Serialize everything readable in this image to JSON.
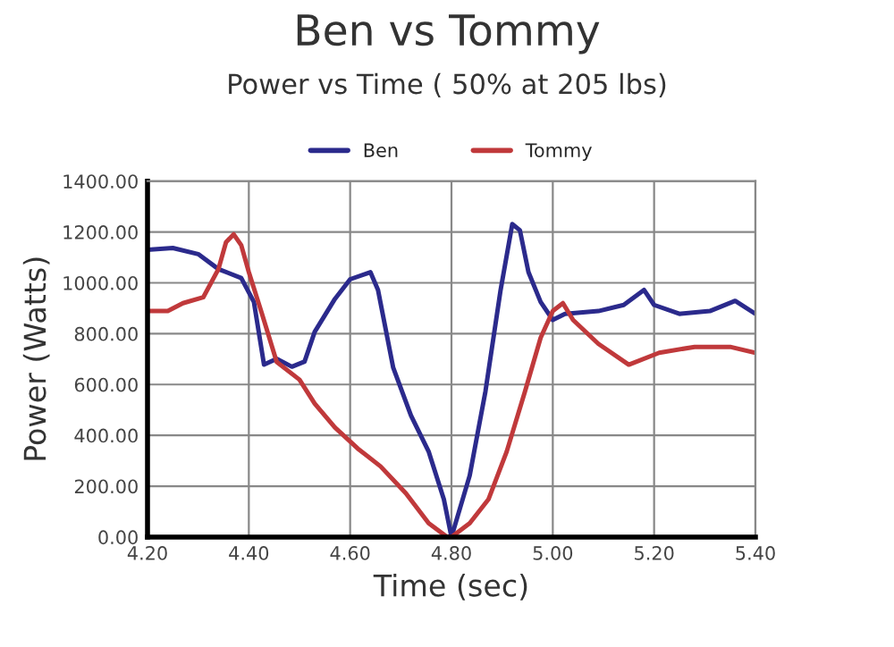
{
  "chart_data": {
    "type": "line",
    "title": "Ben vs Tommy",
    "subtitle": "Power vs Time ( 50% at 205 lbs)",
    "xlabel": "Time (sec)",
    "ylabel": "Power (Watts)",
    "xlim": [
      4.2,
      5.4
    ],
    "xticks": [
      {
        "value": 4.2,
        "label": "4.20"
      },
      {
        "value": 4.4,
        "label": "4.40"
      },
      {
        "value": 4.6,
        "label": "4.60"
      },
      {
        "value": 4.8,
        "label": "4.80"
      },
      {
        "value": 5.0,
        "label": "5.00"
      },
      {
        "value": 5.2,
        "label": "5.20"
      },
      {
        "value": 5.4,
        "label": "5.40"
      }
    ],
    "ylim": [
      0,
      1400
    ],
    "yticks": [
      {
        "value": 0,
        "label": "0.00"
      },
      {
        "value": 200,
        "label": "200.00"
      },
      {
        "value": 400,
        "label": "400.00"
      },
      {
        "value": 600,
        "label": "600.00"
      },
      {
        "value": 800,
        "label": "800.00"
      },
      {
        "value": 1000,
        "label": "1000.00"
      },
      {
        "value": 1200,
        "label": "1200.00"
      },
      {
        "value": 1400,
        "label": "1400.00"
      }
    ],
    "grid": true,
    "legend": "top",
    "line_style": "solid",
    "series": [
      {
        "name": "Ben",
        "color": "#2b2a8c",
        "x": [
          4.2,
          4.25,
          4.3,
          4.34,
          4.385,
          4.41,
          4.43,
          4.455,
          4.485,
          4.51,
          4.53,
          4.57,
          4.6,
          4.64,
          4.655,
          4.685,
          4.72,
          4.755,
          4.785,
          4.8,
          4.836,
          4.867,
          4.897,
          4.92,
          4.935,
          4.952,
          4.976,
          5.0,
          5.024,
          5.09,
          5.14,
          5.18,
          5.2,
          5.25,
          5.31,
          5.36,
          5.4
        ],
        "values": [
          1130,
          1137,
          1113,
          1054,
          1019,
          925,
          678,
          701,
          670,
          690,
          807,
          937,
          1014,
          1042,
          972,
          666,
          478,
          336,
          148,
          0,
          242,
          572,
          972,
          1231,
          1207,
          1042,
          925,
          854,
          878,
          889,
          913,
          972,
          913,
          878,
          889,
          929,
          878
        ]
      },
      {
        "name": "Tommy",
        "color": "#c0393b",
        "x": [
          4.2,
          4.24,
          4.27,
          4.31,
          4.34,
          4.355,
          4.37,
          4.385,
          4.4,
          4.426,
          4.455,
          4.5,
          4.53,
          4.57,
          4.615,
          4.66,
          4.71,
          4.755,
          4.79,
          4.8,
          4.836,
          4.873,
          4.909,
          4.945,
          4.976,
          5.0,
          5.02,
          5.04,
          5.09,
          5.15,
          5.21,
          5.28,
          5.35,
          5.4
        ],
        "values": [
          889,
          889,
          920,
          943,
          1054,
          1160,
          1191,
          1148,
          1042,
          878,
          689,
          619,
          525,
          431,
          348,
          278,
          172,
          54,
          2,
          0,
          54,
          148,
          336,
          572,
          784,
          889,
          920,
          854,
          760,
          678,
          725,
          748,
          748,
          725
        ]
      }
    ]
  }
}
